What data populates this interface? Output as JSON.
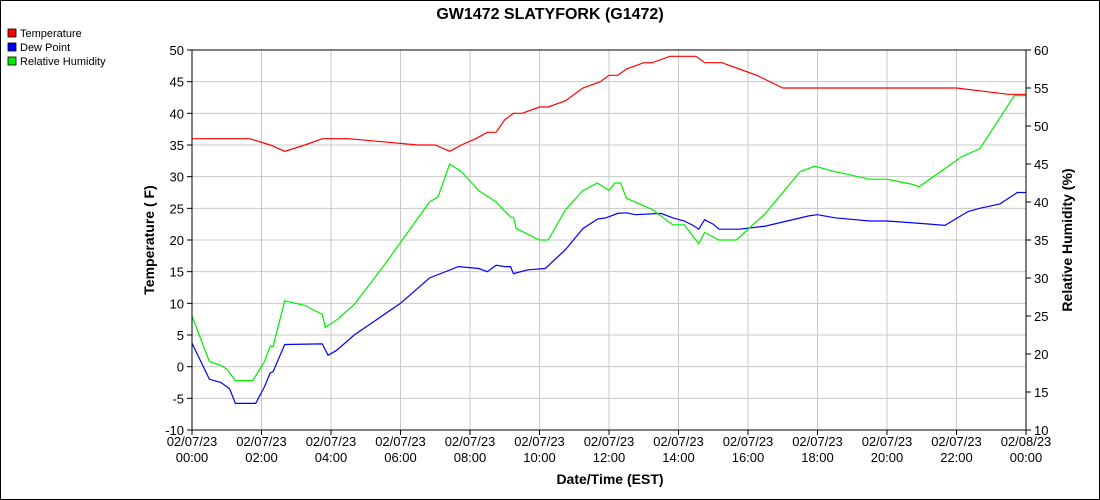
{
  "chart_data": {
    "type": "line",
    "title": "GW1472 SLATYFORK (G1472)",
    "xlabel": "Date/Time (EST)",
    "ylabel_left": "Temperature ( F)",
    "ylabel_right": "Relative Humidity (%)",
    "ylim_left": [
      -10,
      50
    ],
    "ylim_right": [
      10,
      60
    ],
    "y_ticks_left": [
      -10,
      -5,
      0,
      5,
      10,
      15,
      20,
      25,
      30,
      35,
      40,
      45,
      50
    ],
    "y_ticks_right": [
      10,
      15,
      20,
      25,
      30,
      35,
      40,
      45,
      50,
      55,
      60
    ],
    "grid": true,
    "legend_placement": "top-left",
    "x_ticks": [
      {
        "date": "02/07/23",
        "time": "00:00"
      },
      {
        "date": "02/07/23",
        "time": "02:00"
      },
      {
        "date": "02/07/23",
        "time": "04:00"
      },
      {
        "date": "02/07/23",
        "time": "06:00"
      },
      {
        "date": "02/07/23",
        "time": "08:00"
      },
      {
        "date": "02/07/23",
        "time": "10:00"
      },
      {
        "date": "02/07/23",
        "time": "12:00"
      },
      {
        "date": "02/07/23",
        "time": "14:00"
      },
      {
        "date": "02/07/23",
        "time": "16:00"
      },
      {
        "date": "02/07/23",
        "time": "18:00"
      },
      {
        "date": "02/07/23",
        "time": "20:00"
      },
      {
        "date": "02/07/23",
        "time": "22:00"
      },
      {
        "date": "02/08/23",
        "time": "00:00"
      }
    ],
    "series": [
      {
        "name": "Temperature",
        "color": "#ff0000",
        "axis": "left",
        "points": [
          [
            "02/07/23 00:00",
            36
          ],
          [
            "02/07/23 01:00",
            36
          ],
          [
            "02/07/23 01:40",
            36
          ],
          [
            "02/07/23 02:15",
            35
          ],
          [
            "02/07/23 02:40",
            34
          ],
          [
            "02/07/23 03:15",
            35
          ],
          [
            "02/07/23 03:45",
            36
          ],
          [
            "02/07/23 04:30",
            36
          ],
          [
            "02/07/23 05:30",
            35.5
          ],
          [
            "02/07/23 06:30",
            35
          ],
          [
            "02/07/23 07:00",
            35
          ],
          [
            "02/07/23 07:25",
            34
          ],
          [
            "02/07/23 07:45",
            35
          ],
          [
            "02/07/23 08:10",
            36
          ],
          [
            "02/07/23 08:30",
            37
          ],
          [
            "02/07/23 08:45",
            37
          ],
          [
            "02/07/23 09:00",
            39
          ],
          [
            "02/07/23 09:15",
            40
          ],
          [
            "02/07/23 09:30",
            40
          ],
          [
            "02/07/23 10:00",
            41
          ],
          [
            "02/07/23 10:15",
            41
          ],
          [
            "02/07/23 10:45",
            42
          ],
          [
            "02/07/23 11:15",
            44
          ],
          [
            "02/07/23 11:45",
            45
          ],
          [
            "02/07/23 12:00",
            46
          ],
          [
            "02/07/23 12:15",
            46
          ],
          [
            "02/07/23 12:30",
            47
          ],
          [
            "02/07/23 13:00",
            48
          ],
          [
            "02/07/23 13:15",
            48
          ],
          [
            "02/07/23 13:45",
            49
          ],
          [
            "02/07/23 14:00",
            49
          ],
          [
            "02/07/23 14:30",
            49
          ],
          [
            "02/07/23 14:45",
            48
          ],
          [
            "02/07/23 15:15",
            48
          ],
          [
            "02/07/23 15:45",
            47
          ],
          [
            "02/07/23 16:15",
            46
          ],
          [
            "02/07/23 17:00",
            44
          ],
          [
            "02/07/23 18:00",
            44
          ],
          [
            "02/07/23 20:00",
            44
          ],
          [
            "02/07/23 22:00",
            44
          ],
          [
            "02/07/23 22:45",
            43.5
          ],
          [
            "02/07/23 23:30",
            43
          ],
          [
            "02/08/23 00:00",
            43
          ]
        ]
      },
      {
        "name": "Dew Point",
        "color": "#0000ff",
        "axis": "left",
        "points": [
          [
            "02/07/23 00:00",
            3.7
          ],
          [
            "02/07/23 00:30",
            -2
          ],
          [
            "02/07/23 00:50",
            -2.5
          ],
          [
            "02/07/23 01:05",
            -3.5
          ],
          [
            "02/07/23 01:15",
            -5.8
          ],
          [
            "02/07/23 01:50",
            -5.8
          ],
          [
            "02/07/23 02:05",
            -3.2
          ],
          [
            "02/07/23 02:15",
            -1
          ],
          [
            "02/07/23 02:20",
            -0.8
          ],
          [
            "02/07/23 02:40",
            3.5
          ],
          [
            "02/07/23 03:45",
            3.6
          ],
          [
            "02/07/23 03:55",
            1.8
          ],
          [
            "02/07/23 04:10",
            2.6
          ],
          [
            "02/07/23 04:40",
            5
          ],
          [
            "02/07/23 06:00",
            10
          ],
          [
            "02/07/23 06:50",
            14
          ],
          [
            "02/07/23 07:40",
            15.8
          ],
          [
            "02/07/23 08:15",
            15.5
          ],
          [
            "02/07/23 08:30",
            15
          ],
          [
            "02/07/23 08:45",
            16
          ],
          [
            "02/07/23 09:00",
            15.8
          ],
          [
            "02/07/23 09:10",
            15.8
          ],
          [
            "02/07/23 09:15",
            14.7
          ],
          [
            "02/07/23 09:40",
            15.3
          ],
          [
            "02/07/23 10:10",
            15.5
          ],
          [
            "02/07/23 10:45",
            18.5
          ],
          [
            "02/07/23 11:15",
            21.8
          ],
          [
            "02/07/23 11:40",
            23.3
          ],
          [
            "02/07/23 11:55",
            23.5
          ],
          [
            "02/07/23 12:15",
            24.2
          ],
          [
            "02/07/23 12:30",
            24.3
          ],
          [
            "02/07/23 12:45",
            24
          ],
          [
            "02/07/23 13:30",
            24.2
          ],
          [
            "02/07/23 13:50",
            23.5
          ],
          [
            "02/07/23 14:10",
            23
          ],
          [
            "02/07/23 14:25",
            22.3
          ],
          [
            "02/07/23 14:35",
            21.7
          ],
          [
            "02/07/23 14:45",
            23.2
          ],
          [
            "02/07/23 15:00",
            22.5
          ],
          [
            "02/07/23 15:10",
            21.7
          ],
          [
            "02/07/23 15:45",
            21.7
          ],
          [
            "02/07/23 16:30",
            22.2
          ],
          [
            "02/07/23 17:45",
            23.8
          ],
          [
            "02/07/23 18:00",
            24
          ],
          [
            "02/07/23 18:30",
            23.5
          ],
          [
            "02/07/23 19:30",
            23
          ],
          [
            "02/07/23 20:00",
            23
          ],
          [
            "02/07/23 21:00",
            22.6
          ],
          [
            "02/07/23 21:40",
            22.3
          ],
          [
            "02/07/23 22:20",
            24.5
          ],
          [
            "02/07/23 22:40",
            25
          ],
          [
            "02/07/23 23:15",
            25.7
          ],
          [
            "02/07/23 23:45",
            27.5
          ],
          [
            "02/08/23 00:00",
            27.5
          ]
        ]
      },
      {
        "name": "Relative Humidity",
        "color": "#00ee00",
        "axis": "right",
        "points": [
          [
            "02/07/23 00:00",
            25
          ],
          [
            "02/07/23 00:30",
            19
          ],
          [
            "02/07/23 00:50",
            18.5
          ],
          [
            "02/07/23 01:00",
            18
          ],
          [
            "02/07/23 01:15",
            16.5
          ],
          [
            "02/07/23 01:30",
            16.5
          ],
          [
            "02/07/23 01:45",
            16.5
          ],
          [
            "02/07/23 02:05",
            19
          ],
          [
            "02/07/23 02:15",
            21
          ],
          [
            "02/07/23 02:20",
            21
          ],
          [
            "02/07/23 02:40",
            27
          ],
          [
            "02/07/23 03:15",
            26.4
          ],
          [
            "02/07/23 03:45",
            25.2
          ],
          [
            "02/07/23 03:50",
            23.5
          ],
          [
            "02/07/23 04:10",
            24.5
          ],
          [
            "02/07/23 04:40",
            26.5
          ],
          [
            "02/07/23 05:30",
            31.5
          ],
          [
            "02/07/23 06:50",
            40
          ],
          [
            "02/07/23 07:05",
            40.7
          ],
          [
            "02/07/23 07:25",
            45
          ],
          [
            "02/07/23 07:45",
            44
          ],
          [
            "02/07/23 08:15",
            41.5
          ],
          [
            "02/07/23 08:45",
            40
          ],
          [
            "02/07/23 09:10",
            38
          ],
          [
            "02/07/23 09:15",
            38
          ],
          [
            "02/07/23 09:20",
            36.5
          ],
          [
            "02/07/23 10:00",
            35
          ],
          [
            "02/07/23 10:15",
            35
          ],
          [
            "02/07/23 10:45",
            39
          ],
          [
            "02/07/23 11:15",
            41.5
          ],
          [
            "02/07/23 11:40",
            42.5
          ],
          [
            "02/07/23 12:00",
            41.5
          ],
          [
            "02/07/23 12:10",
            42.5
          ],
          [
            "02/07/23 12:20",
            42.5
          ],
          [
            "02/07/23 12:30",
            40.5
          ],
          [
            "02/07/23 13:00",
            39.5
          ],
          [
            "02/07/23 13:15",
            39
          ],
          [
            "02/07/23 13:50",
            37
          ],
          [
            "02/07/23 14:10",
            37
          ],
          [
            "02/07/23 14:25",
            35.5
          ],
          [
            "02/07/23 14:35",
            34.5
          ],
          [
            "02/07/23 14:45",
            36
          ],
          [
            "02/07/23 15:10",
            35
          ],
          [
            "02/07/23 15:40",
            35
          ],
          [
            "02/07/23 16:30",
            38.5
          ],
          [
            "02/07/23 17:30",
            44
          ],
          [
            "02/07/23 17:55",
            44.7
          ],
          [
            "02/07/23 18:30",
            44
          ],
          [
            "02/07/23 19:30",
            43
          ],
          [
            "02/07/23 20:00",
            43
          ],
          [
            "02/07/23 20:45",
            42.3
          ],
          [
            "02/07/23 20:55",
            42
          ],
          [
            "02/07/23 22:10",
            46
          ],
          [
            "02/07/23 22:40",
            47
          ],
          [
            "02/07/23 23:40",
            54
          ],
          [
            "02/08/23 00:00",
            54
          ]
        ]
      }
    ]
  }
}
